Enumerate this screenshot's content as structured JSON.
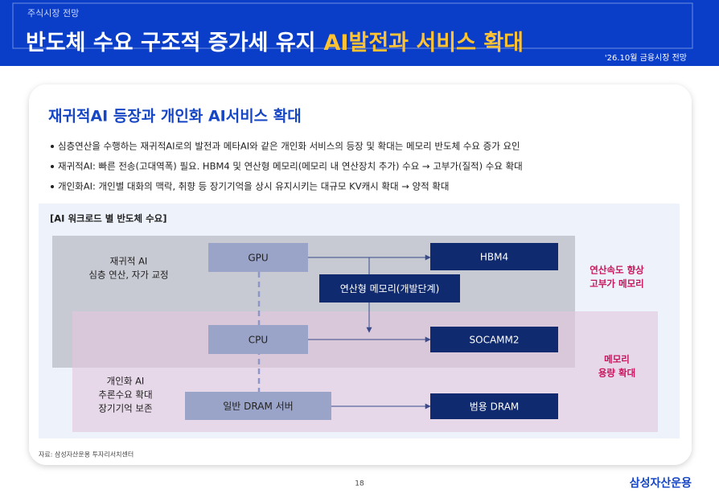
{
  "header": {
    "kicker": "주식시장 전망",
    "title_main": "반도체 수요 구조적 증가세 유지",
    "title_accent": "AI발전과 서비스 확대",
    "badge": "'26.10월 금융시장 전망"
  },
  "section": {
    "title": "재귀적AI 등장과 개인화 AI서비스 확대",
    "bullets": [
      "심층연산을 수행하는 재귀적AI로의 발전과 메타AI와 같은 개인화 서비스의 등장 및 확대는 메모리 반도체 수요 증가 요인",
      "재귀적AI: 빠른 전송(고대역폭) 필요. HBM4 및 연산형 메모리(메모리 내 연산장치 추가) 수요 → 고부가(질적) 수요 확대",
      "개인화AI: 개인별 대화의 맥락, 취향 등 장기기억을 상시 유지시키는 대규모 KV캐시 확대 → 양적 확대"
    ]
  },
  "diagram": {
    "title": "[AI 워크로드 별 반도체 수요]",
    "groups": [
      {
        "lines": [
          "재귀적 AI",
          "심층 연산, 자가 교정"
        ]
      },
      {
        "lines": [
          "개인화 AI",
          "추론수요 확대",
          "장기기억 보존"
        ]
      }
    ],
    "effects": [
      {
        "lines": [
          "연산속도 향상",
          "고부가 메모리"
        ]
      },
      {
        "lines": [
          "메모리",
          "용량 확대"
        ]
      }
    ],
    "nodes": [
      {
        "label": "GPU"
      },
      {
        "label": "CPU"
      },
      {
        "label": "일반 DRAM 서버"
      },
      {
        "label": "HBM4"
      },
      {
        "label": "연산형 메모리(개발단계)"
      },
      {
        "label": "SOCAMM2"
      },
      {
        "label": "범용 DRAM"
      }
    ]
  },
  "source": "자료: 삼성자산운용 투자리서치센터",
  "page_number": "18",
  "logo": "삼성자산운용"
}
